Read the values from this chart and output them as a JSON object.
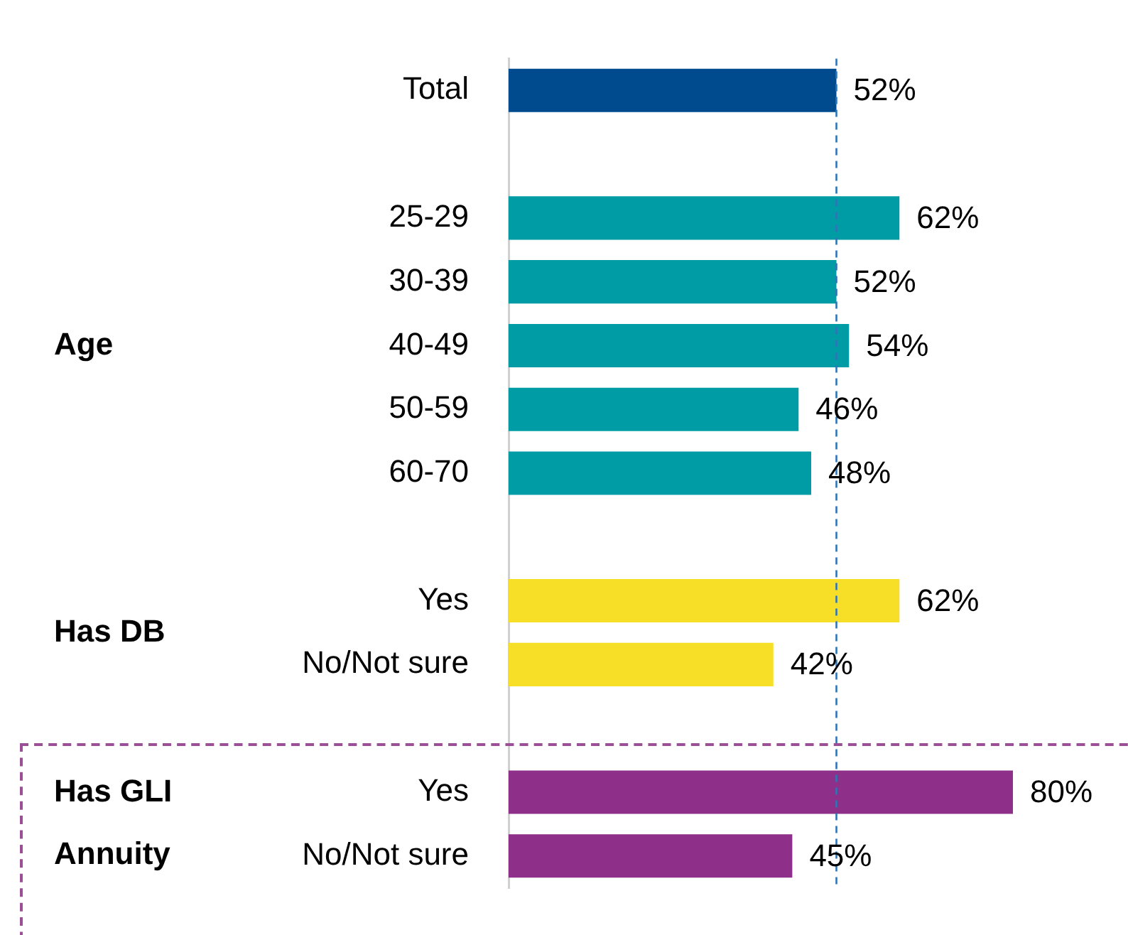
{
  "chart_data": {
    "type": "bar",
    "orientation": "horizontal",
    "categories": [
      "Total",
      null,
      "25-29",
      "30-39",
      "40-49",
      "50-59",
      "60-70",
      null,
      "Yes",
      "No/Not sure",
      null,
      "Yes",
      "No/Not sure"
    ],
    "values": [
      52,
      null,
      62,
      52,
      54,
      46,
      48,
      null,
      62,
      42,
      null,
      80,
      45
    ],
    "colors": [
      "#004b8d",
      null,
      "#009ca6",
      "#009ca6",
      "#009ca6",
      "#009ca6",
      "#009ca6",
      null,
      "#f7df27",
      "#f7df27",
      null,
      "#8e3089",
      "#8e3089"
    ],
    "tick_labels": "y",
    "grid": false,
    "legend": false,
    "data_labels": true,
    "value_labels": [
      "52%",
      null,
      "62%",
      "52%",
      "54%",
      "46%",
      "48%",
      null,
      "62%",
      "42%",
      null,
      "80%",
      "45%"
    ],
    "ref_lines": [
      {
        "axis": "x",
        "value": 52,
        "color": "#2e75b6",
        "line_style": "dashed"
      }
    ],
    "annotations": [
      "Age",
      "Has DB",
      "Has GLI Annuity"
    ]
  }
}
